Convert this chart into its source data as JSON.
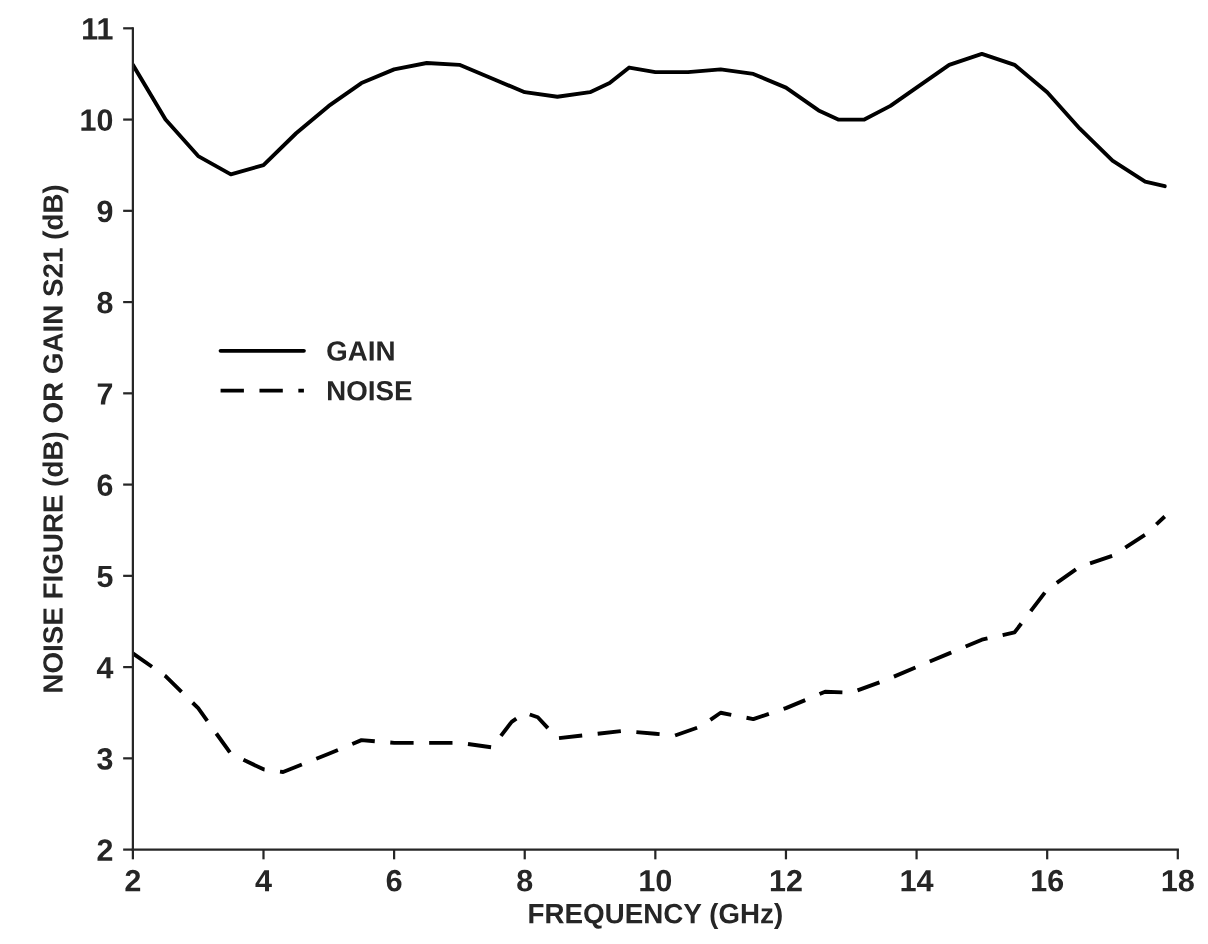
{
  "chart_data": {
    "type": "line",
    "xlabel": "FREQUENCY (GHz)",
    "ylabel": "NOISE FIGURE (dB) OR GAIN S21 (dB)",
    "xlim": [
      2,
      18
    ],
    "xticks": [
      2,
      4,
      6,
      8,
      10,
      12,
      14,
      16,
      18
    ],
    "ylim": [
      2,
      11
    ],
    "yticks": [
      2,
      3,
      4,
      5,
      6,
      7,
      8,
      9,
      10,
      11
    ],
    "grid": false,
    "legend": "left",
    "series": [
      {
        "name": "GAIN",
        "color": "#000000",
        "line_style": "solid",
        "x": [
          2,
          2.5,
          3,
          3.5,
          4,
          4.5,
          5,
          5.5,
          6,
          6.5,
          7,
          7.5,
          8,
          8.5,
          9,
          9.3,
          9.6,
          10,
          10.5,
          11,
          11.5,
          12,
          12.5,
          12.8,
          13.2,
          13.6,
          14,
          14.5,
          15,
          15.5,
          16,
          16.5,
          17,
          17.5,
          17.8
        ],
        "values": [
          10.6,
          10.0,
          9.6,
          9.4,
          9.5,
          9.85,
          10.15,
          10.4,
          10.55,
          10.62,
          10.6,
          10.45,
          10.3,
          10.25,
          10.3,
          10.4,
          10.57,
          10.52,
          10.52,
          10.55,
          10.5,
          10.35,
          10.1,
          10.0,
          10.0,
          10.15,
          10.35,
          10.6,
          10.72,
          10.6,
          10.3,
          9.9,
          9.55,
          9.32,
          9.27
        ]
      },
      {
        "name": "NOISE",
        "color": "#000000",
        "line_style": "dashed",
        "x": [
          2,
          2.5,
          3,
          3.5,
          4,
          4.3,
          5,
          5.5,
          6,
          7,
          7.5,
          7.8,
          8,
          8.2,
          8.5,
          9,
          9.5,
          10,
          10.3,
          10.7,
          11,
          11.5,
          12,
          12.6,
          13,
          13.5,
          14,
          14.5,
          15,
          15.5,
          16,
          16.5,
          17,
          17.5,
          17.8
        ],
        "values": [
          4.15,
          3.9,
          3.55,
          3.05,
          2.88,
          2.85,
          3.05,
          3.2,
          3.17,
          3.17,
          3.12,
          3.4,
          3.5,
          3.45,
          3.22,
          3.26,
          3.3,
          3.27,
          3.25,
          3.35,
          3.5,
          3.43,
          3.55,
          3.73,
          3.72,
          3.85,
          4.0,
          4.15,
          4.3,
          4.38,
          4.85,
          5.1,
          5.22,
          5.45,
          5.65
        ]
      }
    ]
  }
}
